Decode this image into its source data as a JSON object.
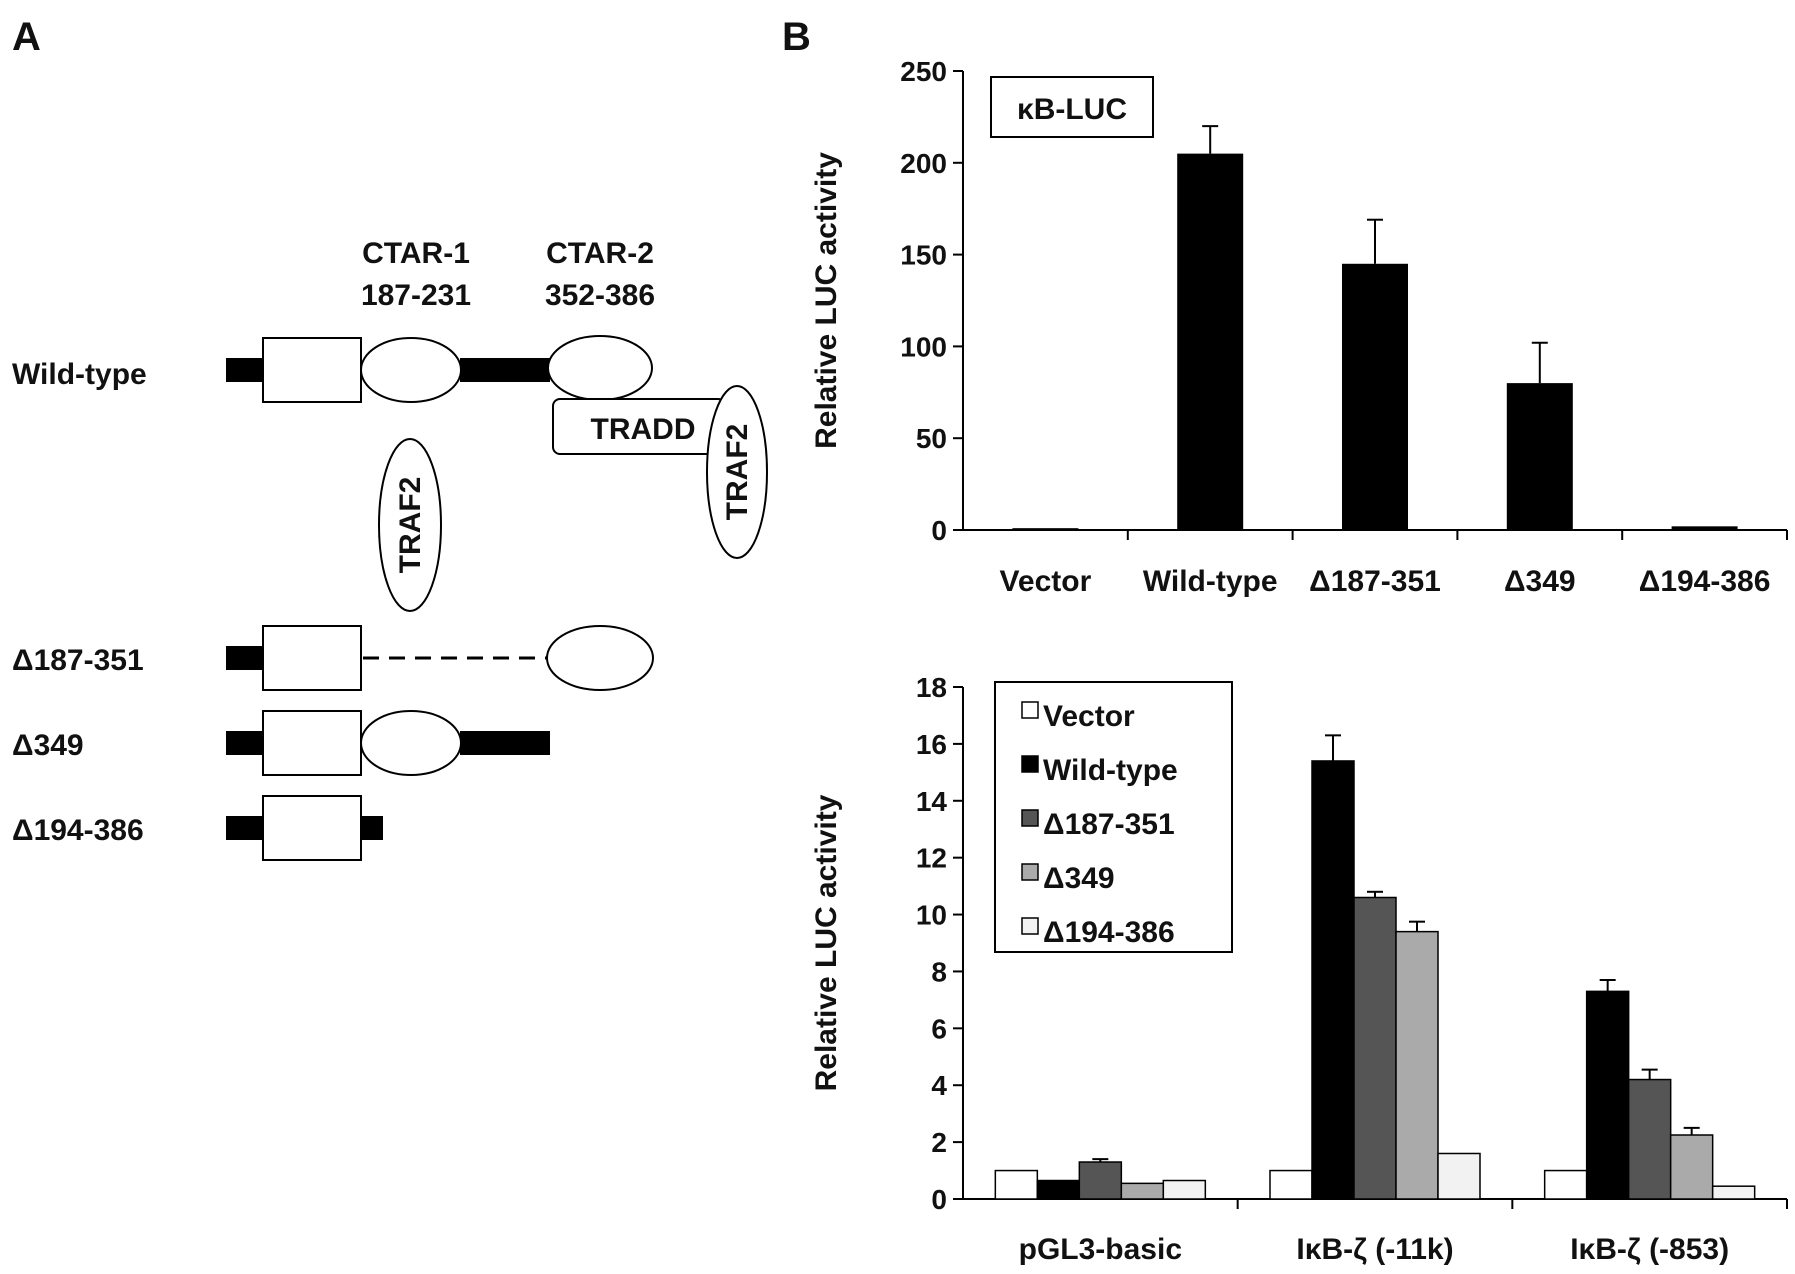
{
  "panel_a": {
    "label": "A",
    "ctar1_name": "CTAR-1",
    "ctar1_range": "187-231",
    "ctar2_name": "CTAR-2",
    "ctar2_range": "352-386",
    "traf2_label": "TRAF2",
    "tradd_label": "TRADD",
    "constructs": [
      "Wild-type",
      "Δ187-351",
      "Δ349",
      "Δ194-386"
    ]
  },
  "panel_b": {
    "label": "B"
  },
  "chart_data": [
    {
      "type": "bar",
      "title": "κB-LUC",
      "ylabel": "Relative LUC activity",
      "xlabel": "",
      "ylim": [
        0,
        250
      ],
      "yticks": [
        0,
        50,
        100,
        150,
        200,
        250
      ],
      "categories": [
        "Vector",
        "Wild-type",
        "Δ187-351",
        "Δ349",
        "Δ194-386"
      ],
      "values": [
        1,
        205,
        145,
        80,
        2
      ],
      "errors": [
        0,
        15,
        24,
        22,
        0
      ],
      "color": "#000000",
      "grid": false
    },
    {
      "type": "bar",
      "title": "",
      "ylabel": "Relative LUC activity",
      "xlabel": "",
      "ylim": [
        0,
        18
      ],
      "yticks": [
        0,
        2,
        4,
        6,
        8,
        10,
        12,
        14,
        16,
        18
      ],
      "legend": "top-left",
      "grid": false,
      "categories": [
        "pGL3-basic",
        "IκB-ζ (-11k)",
        "IκB-ζ (-853)"
      ],
      "series": [
        {
          "name": "Vector",
          "color": "#ffffff",
          "values": [
            1.0,
            1.0,
            1.0
          ],
          "errors": [
            0,
            0,
            0
          ]
        },
        {
          "name": "Wild-type",
          "color": "#000000",
          "values": [
            0.65,
            15.4,
            7.3
          ],
          "errors": [
            0,
            0.9,
            0.4
          ]
        },
        {
          "name": "Δ187-351",
          "color": "#555555",
          "values": [
            1.3,
            10.6,
            4.2
          ],
          "errors": [
            0.1,
            0.2,
            0.35
          ]
        },
        {
          "name": "Δ349",
          "color": "#aaaaaa",
          "values": [
            0.55,
            9.4,
            2.25
          ],
          "errors": [
            0,
            0.35,
            0.25
          ]
        },
        {
          "name": "Δ194-386",
          "color": "#f2f2f2",
          "values": [
            0.65,
            1.6,
            0.45
          ],
          "errors": [
            0,
            0,
            0
          ]
        }
      ]
    }
  ]
}
